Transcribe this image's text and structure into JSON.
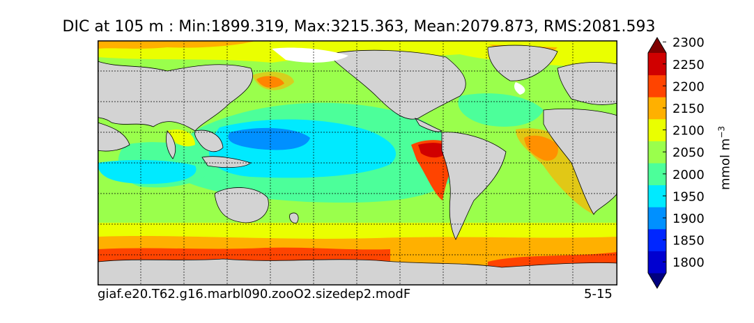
{
  "title": "DIC at 105 m : Min:1899.319, Max:3215.363, Mean:2079.873, RMS:2081.593",
  "footer": {
    "run": "giaf.e20.T62.g16.marbl090.zooO2.sizedep2.modF",
    "period": "5-15"
  },
  "colorbar": {
    "label": "mmol m",
    "label_exponent": "−3",
    "ticks": [
      1800,
      1850,
      1900,
      1950,
      2000,
      2050,
      2100,
      2150,
      2200,
      2250,
      2300
    ],
    "levels": [
      1775,
      1825,
      1875,
      1925,
      1975,
      2025,
      2075,
      2125,
      2175,
      2225,
      2275
    ],
    "colors": [
      "#00007f",
      "#0000d0",
      "#0026ff",
      "#0090ff",
      "#00eaff",
      "#4cff9a",
      "#9aff4c",
      "#eaff00",
      "#ffb000",
      "#ff4400",
      "#d00000",
      "#7f0000"
    ],
    "extend": "both"
  },
  "chart_data": {
    "type": "heatmap",
    "projection": "global lon-lat map",
    "variable": "DIC at 105 m",
    "units": "mmol m-3",
    "stats": {
      "min": 1899.319,
      "max": 3215.363,
      "mean": 2079.873,
      "rms": 2081.593
    },
    "grid": true,
    "colors": {
      "land": "#d3d3d3",
      "missing": "#ffffff",
      "contour": "#000000"
    }
  }
}
